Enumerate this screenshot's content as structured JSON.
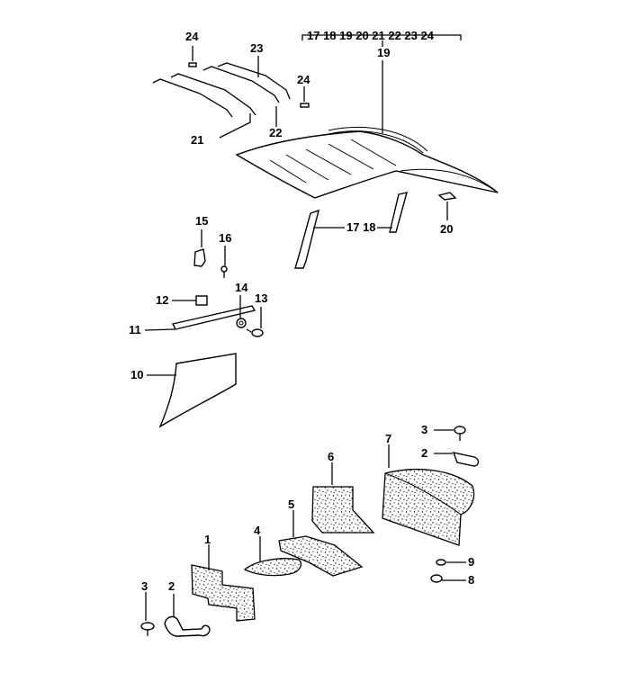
{
  "diagram": {
    "labels": {
      "l1": "1",
      "l2a": "2",
      "l2b": "2",
      "l3a": "3",
      "l3b": "3",
      "l4": "4",
      "l5": "5",
      "l6": "6",
      "l7": "7",
      "l8": "8",
      "l9": "9",
      "l10": "10",
      "l11": "11",
      "l12": "12",
      "l13": "13",
      "l14": "14",
      "l15": "15",
      "l16": "16",
      "l17_18": "17 18",
      "l19": "19",
      "l20": "20",
      "l21": "21",
      "l22": "22",
      "l23": "23",
      "l24a": "24",
      "l24b": "24",
      "kit_parts": "17 18 19 20 21 22 23 24"
    }
  }
}
